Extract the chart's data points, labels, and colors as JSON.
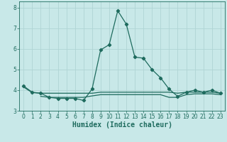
{
  "xlabel": "Humidex (Indice chaleur)",
  "ylabel": "",
  "xlim": [
    -0.5,
    23.5
  ],
  "ylim": [
    3.0,
    8.3
  ],
  "yticks": [
    3,
    4,
    5,
    6,
    7,
    8
  ],
  "xticks": [
    0,
    1,
    2,
    3,
    4,
    5,
    6,
    7,
    8,
    9,
    10,
    11,
    12,
    13,
    14,
    15,
    16,
    17,
    18,
    19,
    20,
    21,
    22,
    23
  ],
  "bg_color": "#c8e8e8",
  "grid_color": "#afd4d4",
  "line_color": "#1e6b5e",
  "line1_x": [
    0,
    1,
    2,
    3,
    4,
    5,
    6,
    7,
    8,
    9,
    10,
    11,
    12,
    13,
    14,
    15,
    16,
    17,
    18,
    19,
    20,
    21,
    22,
    23
  ],
  "line1_y": [
    4.2,
    3.9,
    3.85,
    3.65,
    3.6,
    3.6,
    3.6,
    3.5,
    4.05,
    5.95,
    6.2,
    7.85,
    7.2,
    5.6,
    5.55,
    5.0,
    4.6,
    4.05,
    3.7,
    3.9,
    4.0,
    3.9,
    4.0,
    3.85
  ],
  "line2_x": [
    0,
    1,
    2,
    3,
    4,
    5,
    6,
    7,
    8,
    9,
    10,
    11,
    12,
    13,
    14,
    15,
    16,
    17,
    18,
    19,
    20,
    21,
    22,
    23
  ],
  "line2_y": [
    4.15,
    3.88,
    3.85,
    3.85,
    3.85,
    3.85,
    3.85,
    3.85,
    3.85,
    3.9,
    3.9,
    3.9,
    3.9,
    3.9,
    3.9,
    3.9,
    3.9,
    3.9,
    3.85,
    3.9,
    3.9,
    3.9,
    3.9,
    3.85
  ],
  "line3_x": [
    2,
    3,
    4,
    5,
    6,
    7,
    8,
    9,
    10,
    11,
    12,
    13,
    14,
    15,
    16,
    17,
    18,
    19,
    20,
    21,
    22,
    23
  ],
  "line3_y": [
    3.7,
    3.65,
    3.65,
    3.65,
    3.65,
    3.65,
    3.72,
    3.78,
    3.78,
    3.78,
    3.78,
    3.78,
    3.78,
    3.78,
    3.78,
    3.65,
    3.65,
    3.78,
    3.82,
    3.82,
    3.82,
    3.78
  ],
  "tick_fontsize": 5.5,
  "xlabel_fontsize": 7.0
}
